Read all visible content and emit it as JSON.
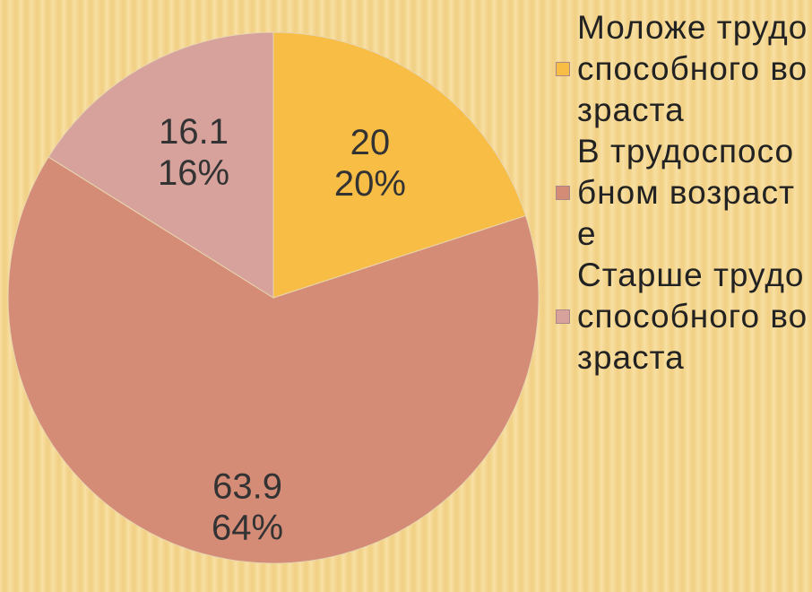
{
  "chart_data": {
    "type": "pie",
    "categories": [
      "Моложе трудоспособного возраста",
      "В трудоспособном возрасте",
      "Старше трудоспособного возраста"
    ],
    "values": [
      20,
      63.9,
      16.1
    ],
    "percent_labels": [
      "20%",
      "64%",
      "16%"
    ],
    "colors": [
      "#f7bd45",
      "#d48c77",
      "#d6a29b"
    ],
    "legend": "right"
  }
}
